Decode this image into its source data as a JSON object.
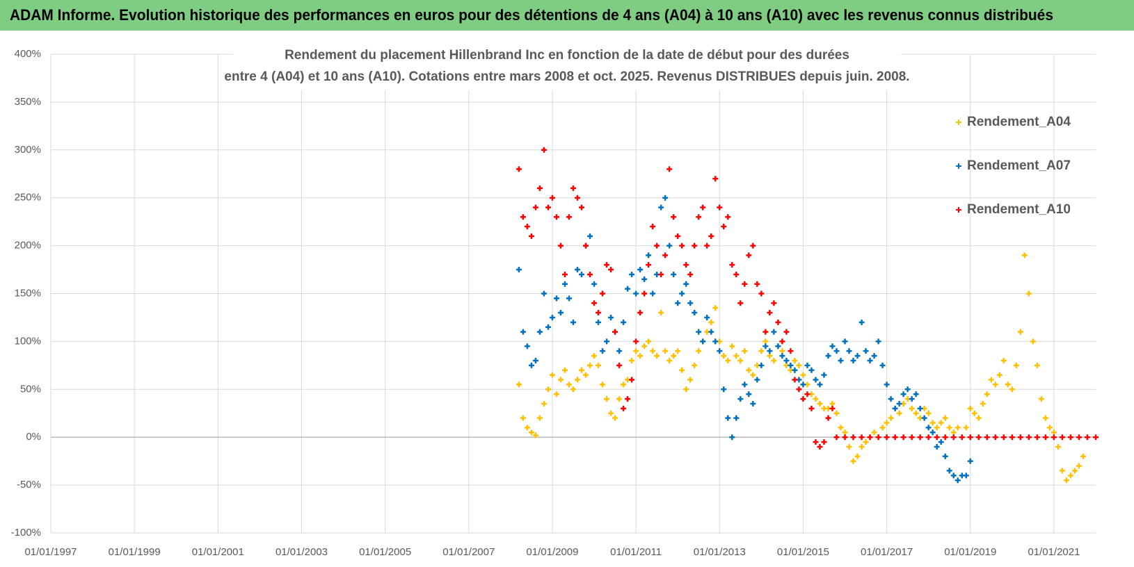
{
  "header": {
    "title": "ADAM Informe. Evolution historique des performances en euros pour des détentions de 4 ans (A04) à 10 ans (A10) avec les revenus connus distribués"
  },
  "chart_data": {
    "type": "scatter",
    "title": "Rendement du placement Hillenbrand Inc en fonction de la date de début pour des durées",
    "subtitle": "entre 4 (A04) et 10 ans (A10).  Cotations entre mars 2008 et oct. 2025. Revenus DISTRIBUES depuis juin. 2008.",
    "xlim": [
      1997,
      2022
    ],
    "xticks": [
      {
        "value": 1997,
        "label": "01/01/1997"
      },
      {
        "value": 1999,
        "label": "01/01/1999"
      },
      {
        "value": 2001,
        "label": "01/01/2001"
      },
      {
        "value": 2003,
        "label": "01/01/2003"
      },
      {
        "value": 2005,
        "label": "01/01/2005"
      },
      {
        "value": 2007,
        "label": "01/01/2007"
      },
      {
        "value": 2009,
        "label": "01/01/2009"
      },
      {
        "value": 2011,
        "label": "01/01/2011"
      },
      {
        "value": 2013,
        "label": "01/01/2013"
      },
      {
        "value": 2015,
        "label": "01/01/2015"
      },
      {
        "value": 2017,
        "label": "01/01/2017"
      },
      {
        "value": 2019,
        "label": "01/01/2019"
      },
      {
        "value": 2021,
        "label": "01/01/2021"
      }
    ],
    "ylim": [
      -100,
      400
    ],
    "yticks": [
      {
        "value": -100,
        "label": "-100%"
      },
      {
        "value": -50,
        "label": "-50%"
      },
      {
        "value": 0,
        "label": "0%"
      },
      {
        "value": 50,
        "label": "50%"
      },
      {
        "value": 100,
        "label": "100%"
      },
      {
        "value": 150,
        "label": "150%"
      },
      {
        "value": 200,
        "label": "200%"
      },
      {
        "value": 250,
        "label": "250%"
      },
      {
        "value": 300,
        "label": "300%"
      },
      {
        "value": 350,
        "label": "350%"
      },
      {
        "value": 400,
        "label": "400%"
      }
    ],
    "grid": true,
    "legend": "right",
    "series": [
      {
        "name": "Rendement_A04",
        "color": "#ffc000",
        "x": [
          2008.2,
          2008.3,
          2008.4,
          2008.5,
          2008.6,
          2008.7,
          2008.8,
          2008.9,
          2009.0,
          2009.1,
          2009.2,
          2009.3,
          2009.4,
          2009.5,
          2009.6,
          2009.7,
          2009.8,
          2009.9,
          2010.0,
          2010.1,
          2010.2,
          2010.3,
          2010.4,
          2010.5,
          2010.6,
          2010.7,
          2010.8,
          2010.9,
          2011.0,
          2011.1,
          2011.2,
          2011.3,
          2011.4,
          2011.5,
          2011.6,
          2011.7,
          2011.8,
          2011.9,
          2012.0,
          2012.1,
          2012.2,
          2012.3,
          2012.4,
          2012.5,
          2012.6,
          2012.7,
          2012.8,
          2012.9,
          2013.0,
          2013.1,
          2013.2,
          2013.3,
          2013.4,
          2013.5,
          2013.6,
          2013.7,
          2013.8,
          2013.9,
          2014.0,
          2014.1,
          2014.2,
          2014.3,
          2014.4,
          2014.5,
          2014.6,
          2014.7,
          2014.8,
          2014.9,
          2015.0,
          2015.1,
          2015.2,
          2015.3,
          2015.4,
          2015.5,
          2015.6,
          2015.7,
          2015.8,
          2015.9,
          2016.0,
          2016.1,
          2016.2,
          2016.3,
          2016.4,
          2016.5,
          2016.6,
          2016.7,
          2016.8,
          2016.9,
          2017.0,
          2017.1,
          2017.2,
          2017.3,
          2017.4,
          2017.5,
          2017.6,
          2017.7,
          2017.8,
          2017.9,
          2018.0,
          2018.1,
          2018.2,
          2018.3,
          2018.4,
          2018.5,
          2018.6,
          2018.7,
          2018.8,
          2018.9,
          2019.0,
          2019.1,
          2019.2,
          2019.3,
          2019.4,
          2019.5,
          2019.6,
          2019.7,
          2019.8,
          2019.9,
          2020.0,
          2020.1,
          2020.2,
          2020.3,
          2020.4,
          2020.5,
          2020.6,
          2020.7,
          2020.8,
          2020.9,
          2021.0,
          2021.1,
          2021.2,
          2021.3,
          2021.4,
          2021.5,
          2021.6,
          2021.7
        ],
        "values": [
          55,
          20,
          10,
          5,
          2,
          20,
          35,
          50,
          65,
          45,
          60,
          70,
          55,
          50,
          60,
          70,
          65,
          75,
          85,
          75,
          55,
          40,
          25,
          20,
          40,
          55,
          60,
          80,
          90,
          85,
          95,
          100,
          90,
          85,
          130,
          90,
          80,
          85,
          90,
          70,
          50,
          60,
          75,
          90,
          100,
          110,
          120,
          135,
          100,
          85,
          80,
          95,
          85,
          80,
          90,
          70,
          65,
          75,
          90,
          100,
          85,
          80,
          95,
          90,
          75,
          70,
          80,
          75,
          65,
          55,
          45,
          40,
          35,
          30,
          30,
          35,
          25,
          10,
          5,
          -10,
          -25,
          -20,
          -10,
          -5,
          0,
          5,
          0,
          10,
          15,
          20,
          30,
          25,
          35,
          40,
          30,
          25,
          20,
          30,
          25,
          15,
          10,
          15,
          20,
          10,
          5,
          10,
          0,
          10,
          30,
          25,
          20,
          35,
          45,
          60,
          55,
          65,
          80,
          55,
          50,
          75,
          110,
          190,
          150,
          100,
          75,
          40,
          20,
          10,
          5,
          -10,
          -35,
          -45,
          -40,
          -35,
          -30,
          -20
        ]
      },
      {
        "name": "Rendement_A07",
        "color": "#0070c0",
        "x": [
          2008.2,
          2008.3,
          2008.4,
          2008.5,
          2008.6,
          2008.7,
          2008.8,
          2008.9,
          2009.0,
          2009.1,
          2009.2,
          2009.3,
          2009.4,
          2009.5,
          2009.6,
          2009.7,
          2009.8,
          2009.9,
          2010.0,
          2010.1,
          2010.2,
          2010.3,
          2010.4,
          2010.5,
          2010.6,
          2010.7,
          2010.8,
          2010.9,
          2011.0,
          2011.1,
          2011.2,
          2011.3,
          2011.4,
          2011.5,
          2011.6,
          2011.7,
          2011.8,
          2011.9,
          2012.0,
          2012.1,
          2012.2,
          2012.3,
          2012.4,
          2012.5,
          2012.6,
          2012.7,
          2012.8,
          2012.9,
          2013.0,
          2013.1,
          2013.2,
          2013.3,
          2013.4,
          2013.5,
          2013.6,
          2013.7,
          2013.8,
          2013.9,
          2014.0,
          2014.1,
          2014.2,
          2014.3,
          2014.4,
          2014.5,
          2014.6,
          2014.7,
          2014.8,
          2014.9,
          2015.0,
          2015.1,
          2015.2,
          2015.3,
          2015.4,
          2015.5,
          2015.6,
          2015.7,
          2015.8,
          2015.9,
          2016.0,
          2016.1,
          2016.2,
          2016.3,
          2016.4,
          2016.5,
          2016.6,
          2016.7,
          2016.8,
          2016.9,
          2017.0,
          2017.1,
          2017.2,
          2017.3,
          2017.4,
          2017.5,
          2017.6,
          2017.7,
          2017.8,
          2017.9,
          2018.0,
          2018.1,
          2018.2,
          2018.3,
          2018.4,
          2018.5,
          2018.6,
          2018.7,
          2018.8,
          2018.9,
          2019.0
        ],
        "values": [
          175,
          110,
          95,
          75,
          80,
          110,
          150,
          115,
          125,
          145,
          130,
          160,
          145,
          120,
          175,
          170,
          200,
          210,
          160,
          120,
          90,
          100,
          125,
          110,
          90,
          120,
          155,
          170,
          150,
          175,
          165,
          190,
          150,
          170,
          240,
          250,
          200,
          170,
          140,
          150,
          160,
          140,
          130,
          110,
          100,
          125,
          110,
          100,
          90,
          50,
          20,
          0,
          20,
          40,
          55,
          45,
          35,
          60,
          75,
          95,
          90,
          110,
          95,
          85,
          80,
          75,
          70,
          60,
          55,
          75,
          70,
          60,
          55,
          65,
          85,
          95,
          90,
          80,
          100,
          90,
          80,
          85,
          120,
          90,
          80,
          85,
          100,
          75,
          55,
          40,
          30,
          35,
          45,
          50,
          40,
          45,
          30,
          20,
          10,
          5,
          -10,
          -5,
          -20,
          -35,
          -40,
          -45,
          -40,
          -40,
          -25
        ]
      },
      {
        "name": "Rendement_A10",
        "color": "#ff0000",
        "x": [
          2008.2,
          2008.3,
          2008.4,
          2008.5,
          2008.6,
          2008.7,
          2008.8,
          2008.9,
          2009.0,
          2009.1,
          2009.2,
          2009.3,
          2009.4,
          2009.5,
          2009.6,
          2009.7,
          2009.8,
          2009.9,
          2010.0,
          2010.1,
          2010.2,
          2010.3,
          2010.4,
          2010.5,
          2010.6,
          2010.7,
          2010.8,
          2010.9,
          2011.0,
          2011.1,
          2011.2,
          2011.3,
          2011.4,
          2011.5,
          2011.6,
          2011.7,
          2011.8,
          2011.9,
          2012.0,
          2012.1,
          2012.2,
          2012.3,
          2012.4,
          2012.5,
          2012.6,
          2012.7,
          2012.8,
          2012.9,
          2013.0,
          2013.1,
          2013.2,
          2013.3,
          2013.4,
          2013.5,
          2013.6,
          2013.7,
          2013.8,
          2013.9,
          2014.0,
          2014.1,
          2014.2,
          2014.3,
          2014.4,
          2014.5,
          2014.6,
          2014.7,
          2014.8,
          2014.9,
          2015.0,
          2015.1,
          2015.2,
          2015.3,
          2015.4,
          2015.5,
          2015.6,
          2015.7,
          2015.8,
          2016.0,
          2016.2,
          2016.4,
          2016.6,
          2016.8,
          2017.0,
          2017.2,
          2017.4,
          2017.6,
          2017.8,
          2018.0,
          2018.2,
          2018.4,
          2018.6,
          2018.8,
          2019.0,
          2019.2,
          2019.4,
          2019.6,
          2019.8,
          2020.0,
          2020.2,
          2020.4,
          2020.6,
          2020.8,
          2021.0,
          2021.2,
          2021.4,
          2021.6,
          2021.8,
          2022.0
        ],
        "values": [
          280,
          230,
          220,
          210,
          240,
          260,
          300,
          240,
          250,
          230,
          200,
          170,
          230,
          260,
          250,
          240,
          200,
          170,
          140,
          130,
          150,
          180,
          175,
          110,
          75,
          30,
          40,
          60,
          100,
          130,
          150,
          180,
          220,
          200,
          170,
          190,
          280,
          230,
          210,
          200,
          180,
          170,
          200,
          230,
          240,
          200,
          210,
          270,
          240,
          220,
          230,
          180,
          170,
          140,
          160,
          190,
          200,
          160,
          150,
          110,
          130,
          140,
          120,
          100,
          110,
          90,
          60,
          50,
          40,
          45,
          30,
          -5,
          -10,
          -5,
          20,
          30,
          0,
          0,
          0,
          0,
          0,
          0,
          0,
          0,
          0,
          0,
          0,
          0,
          0,
          0,
          0,
          0,
          0,
          0,
          0,
          0,
          0,
          0,
          0,
          0,
          0,
          0,
          0,
          0,
          0,
          0,
          0,
          0
        ]
      }
    ]
  }
}
